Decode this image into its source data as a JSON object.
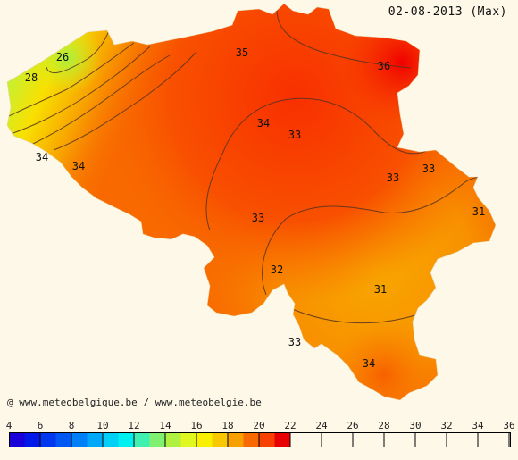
{
  "title": "02-08-2013 (Max)",
  "credit": "@ www.meteobelgique.be / www.meteobelgie.be",
  "scale": {
    "ticks": [
      "4",
      "6",
      "8",
      "10",
      "12",
      "14",
      "16",
      "18",
      "20",
      "22",
      "24",
      "26",
      "28",
      "30",
      "32",
      "34",
      "36"
    ],
    "colors": [
      "#1a00d8",
      "#0018e8",
      "#0038f0",
      "#0058f4",
      "#0080f8",
      "#00a8f8",
      "#00d0f8",
      "#00f0f0",
      "#40f0b0",
      "#80f070",
      "#b0f040",
      "#e0f820",
      "#f8f000",
      "#f8c800",
      "#f8a000",
      "#f86a00",
      "#f84000",
      "#e80000"
    ]
  },
  "map": {
    "region": "Belgium",
    "labels": [
      {
        "text": "26"
      },
      {
        "text": "28"
      },
      {
        "text": "34"
      },
      {
        "text": "34"
      },
      {
        "text": "35"
      },
      {
        "text": "36"
      },
      {
        "text": "34"
      },
      {
        "text": "33"
      },
      {
        "text": "33"
      },
      {
        "text": "33"
      },
      {
        "text": "31"
      },
      {
        "text": "33"
      },
      {
        "text": "32"
      },
      {
        "text": "31"
      },
      {
        "text": "33"
      },
      {
        "text": "34"
      }
    ]
  }
}
